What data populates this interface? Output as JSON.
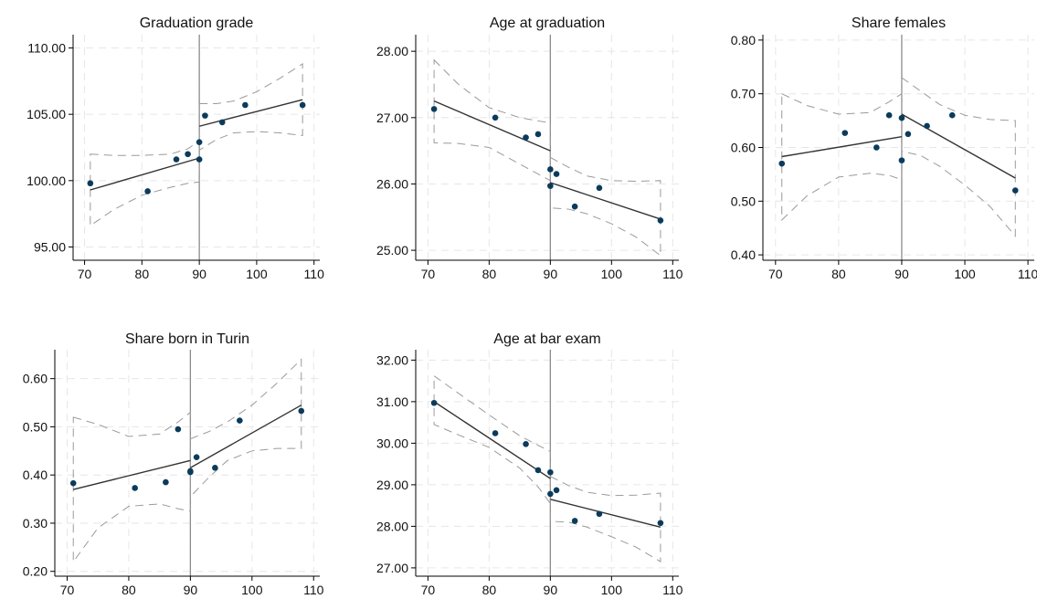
{
  "chart_data": [
    {
      "type": "scatter",
      "title": "Graduation grade",
      "xlim": [
        68,
        111
      ],
      "ylim": [
        94,
        111
      ],
      "xticks": [
        "70",
        "80",
        "90",
        "100",
        "110"
      ],
      "yticks": [
        "95.00",
        "100.00",
        "105.00",
        "110.00"
      ],
      "cutoff": 90,
      "points": [
        [
          71,
          99.8
        ],
        [
          81,
          99.2
        ],
        [
          86,
          101.6
        ],
        [
          88,
          102.0
        ],
        [
          90,
          101.6
        ],
        [
          90,
          102.9
        ],
        [
          91,
          104.9
        ],
        [
          94,
          104.4
        ],
        [
          98,
          105.7
        ],
        [
          108,
          105.7
        ]
      ],
      "fit_left": [
        [
          71,
          99.3
        ],
        [
          90,
          101.7
        ]
      ],
      "fit_right": [
        [
          90,
          104.1
        ],
        [
          108,
          106.1
        ]
      ],
      "ci_left_upper": [
        [
          71,
          102.0
        ],
        [
          75,
          101.9
        ],
        [
          80,
          101.9
        ],
        [
          85,
          102.0
        ],
        [
          88,
          102.4
        ],
        [
          90,
          103.0
        ]
      ],
      "ci_left_lower": [
        [
          71,
          96.6
        ],
        [
          75,
          97.8
        ],
        [
          80,
          98.9
        ],
        [
          85,
          99.5
        ],
        [
          88,
          99.8
        ],
        [
          90,
          99.9
        ]
      ],
      "ci_right_upper": [
        [
          90,
          105.8
        ],
        [
          93,
          105.8
        ],
        [
          96,
          106.0
        ],
        [
          100,
          106.7
        ],
        [
          104,
          107.7
        ],
        [
          108,
          108.8
        ]
      ],
      "ci_right_lower": [
        [
          90,
          102.3
        ],
        [
          93,
          103.1
        ],
        [
          96,
          103.6
        ],
        [
          100,
          103.7
        ],
        [
          104,
          103.6
        ],
        [
          108,
          103.4
        ]
      ]
    },
    {
      "type": "scatter",
      "title": "Age at graduation",
      "xlim": [
        68,
        111
      ],
      "ylim": [
        24.85,
        28.25
      ],
      "xticks": [
        "70",
        "80",
        "90",
        "100",
        "110"
      ],
      "yticks": [
        "25.00",
        "26.00",
        "27.00",
        "28.00"
      ],
      "cutoff": 90,
      "points": [
        [
          71,
          27.13
        ],
        [
          81,
          27.0
        ],
        [
          86,
          26.7
        ],
        [
          88,
          26.75
        ],
        [
          90,
          26.22
        ],
        [
          90,
          25.97
        ],
        [
          91,
          26.15
        ],
        [
          94,
          25.66
        ],
        [
          98,
          25.94
        ],
        [
          108,
          25.45
        ]
      ],
      "fit_left": [
        [
          71,
          27.25
        ],
        [
          90,
          26.5
        ]
      ],
      "fit_right": [
        [
          90,
          26.02
        ],
        [
          108,
          25.47
        ]
      ],
      "ci_left_upper": [
        [
          71,
          27.87
        ],
        [
          75,
          27.5
        ],
        [
          80,
          27.15
        ],
        [
          85,
          27.0
        ],
        [
          88,
          26.95
        ],
        [
          90,
          26.92
        ]
      ],
      "ci_left_lower": [
        [
          71,
          26.62
        ],
        [
          75,
          26.61
        ],
        [
          80,
          26.55
        ],
        [
          85,
          26.3
        ],
        [
          88,
          26.15
        ],
        [
          90,
          26.05
        ]
      ],
      "ci_right_upper": [
        [
          90,
          26.4
        ],
        [
          93,
          26.25
        ],
        [
          96,
          26.12
        ],
        [
          100,
          26.05
        ],
        [
          104,
          26.04
        ],
        [
          108,
          26.05
        ]
      ],
      "ci_right_lower": [
        [
          90,
          25.64
        ],
        [
          93,
          25.62
        ],
        [
          96,
          25.55
        ],
        [
          100,
          25.4
        ],
        [
          104,
          25.2
        ],
        [
          108,
          24.92
        ]
      ]
    },
    {
      "type": "scatter",
      "title": "Share females",
      "xlim": [
        68,
        111
      ],
      "ylim": [
        0.39,
        0.81
      ],
      "xticks": [
        "70",
        "80",
        "90",
        "100",
        "110"
      ],
      "yticks": [
        "0.40",
        "0.50",
        "0.60",
        "0.70",
        "0.80"
      ],
      "cutoff": 90,
      "points": [
        [
          71,
          0.57
        ],
        [
          81,
          0.627
        ],
        [
          86,
          0.6
        ],
        [
          88,
          0.66
        ],
        [
          90,
          0.655
        ],
        [
          90,
          0.576
        ],
        [
          91,
          0.625
        ],
        [
          94,
          0.64
        ],
        [
          98,
          0.66
        ],
        [
          108,
          0.52
        ]
      ],
      "fit_left": [
        [
          71,
          0.583
        ],
        [
          90,
          0.62
        ]
      ],
      "fit_right": [
        [
          90,
          0.662
        ],
        [
          108,
          0.543
        ]
      ],
      "ci_left_upper": [
        [
          71,
          0.7
        ],
        [
          75,
          0.678
        ],
        [
          80,
          0.662
        ],
        [
          85,
          0.665
        ],
        [
          88,
          0.685
        ],
        [
          90,
          0.7
        ]
      ],
      "ci_left_lower": [
        [
          71,
          0.465
        ],
        [
          75,
          0.51
        ],
        [
          80,
          0.545
        ],
        [
          85,
          0.552
        ],
        [
          88,
          0.548
        ],
        [
          90,
          0.54
        ]
      ],
      "ci_right_upper": [
        [
          90,
          0.73
        ],
        [
          93,
          0.705
        ],
        [
          96,
          0.68
        ],
        [
          100,
          0.66
        ],
        [
          104,
          0.652
        ],
        [
          108,
          0.65
        ]
      ],
      "ci_right_lower": [
        [
          90,
          0.593
        ],
        [
          93,
          0.585
        ],
        [
          96,
          0.565
        ],
        [
          100,
          0.53
        ],
        [
          104,
          0.49
        ],
        [
          108,
          0.435
        ]
      ]
    },
    {
      "type": "scatter",
      "title": "Share born in Turin",
      "xlim": [
        68,
        111
      ],
      "ylim": [
        0.19,
        0.66
      ],
      "xticks": [
        "70",
        "80",
        "90",
        "100",
        "110"
      ],
      "yticks": [
        "0.20",
        "0.30",
        "0.40",
        "0.50",
        "0.60"
      ],
      "cutoff": 90,
      "points": [
        [
          71,
          0.383
        ],
        [
          81,
          0.373
        ],
        [
          86,
          0.385
        ],
        [
          88,
          0.495
        ],
        [
          90,
          0.408
        ],
        [
          90,
          0.406
        ],
        [
          91,
          0.437
        ],
        [
          94,
          0.415
        ],
        [
          98,
          0.513
        ],
        [
          108,
          0.533
        ]
      ],
      "fit_left": [
        [
          71,
          0.37
        ],
        [
          90,
          0.43
        ]
      ],
      "fit_right": [
        [
          90,
          0.415
        ],
        [
          108,
          0.545
        ]
      ],
      "ci_left_upper": [
        [
          71,
          0.52
        ],
        [
          75,
          0.505
        ],
        [
          80,
          0.48
        ],
        [
          85,
          0.485
        ],
        [
          88,
          0.51
        ],
        [
          90,
          0.53
        ]
      ],
      "ci_left_lower": [
        [
          71,
          0.22
        ],
        [
          75,
          0.29
        ],
        [
          80,
          0.335
        ],
        [
          85,
          0.34
        ],
        [
          88,
          0.33
        ],
        [
          90,
          0.325
        ]
      ],
      "ci_right_upper": [
        [
          90,
          0.475
        ],
        [
          93,
          0.49
        ],
        [
          96,
          0.51
        ],
        [
          100,
          0.545
        ],
        [
          104,
          0.59
        ],
        [
          108,
          0.64
        ]
      ],
      "ci_right_lower": [
        [
          90,
          0.355
        ],
        [
          93,
          0.395
        ],
        [
          96,
          0.43
        ],
        [
          100,
          0.45
        ],
        [
          104,
          0.455
        ],
        [
          108,
          0.455
        ]
      ]
    },
    {
      "type": "scatter",
      "title": "Age at bar exam",
      "xlim": [
        68,
        111
      ],
      "ylim": [
        26.8,
        32.25
      ],
      "xticks": [
        "70",
        "80",
        "90",
        "100",
        "110"
      ],
      "yticks": [
        "27.00",
        "28.00",
        "29.00",
        "30.00",
        "31.00",
        "32.00"
      ],
      "cutoff": 90,
      "points": [
        [
          71,
          30.97
        ],
        [
          81,
          30.24
        ],
        [
          86,
          29.98
        ],
        [
          88,
          29.35
        ],
        [
          90,
          29.3
        ],
        [
          90,
          28.78
        ],
        [
          91,
          28.87
        ],
        [
          94,
          28.13
        ],
        [
          98,
          28.3
        ],
        [
          108,
          28.08
        ]
      ],
      "fit_left": [
        [
          71,
          31.0
        ],
        [
          90,
          29.15
        ]
      ],
      "fit_right": [
        [
          90,
          28.65
        ],
        [
          108,
          27.98
        ]
      ],
      "ci_left_upper": [
        [
          71,
          31.62
        ],
        [
          75,
          31.2
        ],
        [
          80,
          30.68
        ],
        [
          85,
          30.18
        ],
        [
          88,
          29.95
        ],
        [
          90,
          29.8
        ]
      ],
      "ci_left_lower": [
        [
          71,
          30.45
        ],
        [
          75,
          30.2
        ],
        [
          80,
          29.9
        ],
        [
          85,
          29.4
        ],
        [
          88,
          28.95
        ],
        [
          90,
          28.55
        ]
      ],
      "ci_right_upper": [
        [
          90,
          29.2
        ],
        [
          93,
          28.98
        ],
        [
          96,
          28.82
        ],
        [
          100,
          28.74
        ],
        [
          104,
          28.75
        ],
        [
          108,
          28.8
        ]
      ],
      "ci_right_lower": [
        [
          90,
          28.12
        ],
        [
          93,
          28.1
        ],
        [
          96,
          27.98
        ],
        [
          100,
          27.75
        ],
        [
          104,
          27.5
        ],
        [
          108,
          27.15
        ]
      ]
    }
  ]
}
